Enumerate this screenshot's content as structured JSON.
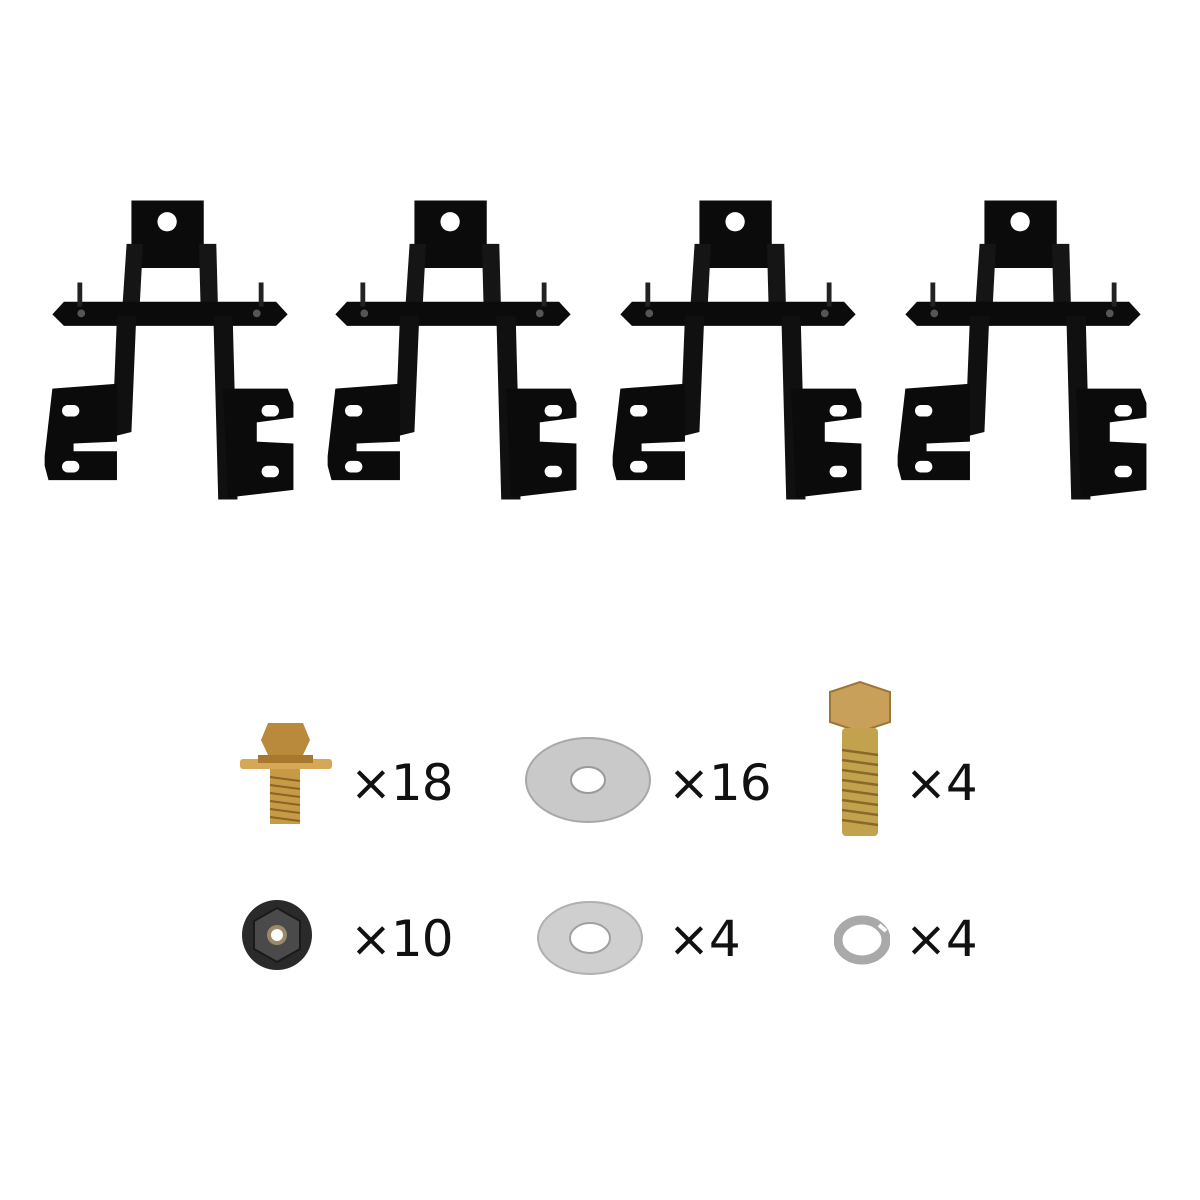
{
  "colors": {
    "bracket": "#0b0b0b",
    "zinc_gold": "#c79a45",
    "silver": "#c9c9c9",
    "nut": "#2a2a2a"
  },
  "brackets": [
    {
      "name": "mounting-bracket"
    },
    {
      "name": "mounting-bracket"
    },
    {
      "name": "mounting-bracket"
    },
    {
      "name": "mounting-bracket"
    }
  ],
  "hardware": [
    {
      "item": "flange-screw-icon",
      "quantity": "×18"
    },
    {
      "item": "large-washer-icon",
      "quantity": "×16"
    },
    {
      "item": "hex-bolt-icon",
      "quantity": "×4"
    },
    {
      "item": "flange-nut-icon",
      "quantity": "×10"
    },
    {
      "item": "flat-washer-icon",
      "quantity": "×4"
    },
    {
      "item": "lock-washer-icon",
      "quantity": "×4"
    }
  ]
}
